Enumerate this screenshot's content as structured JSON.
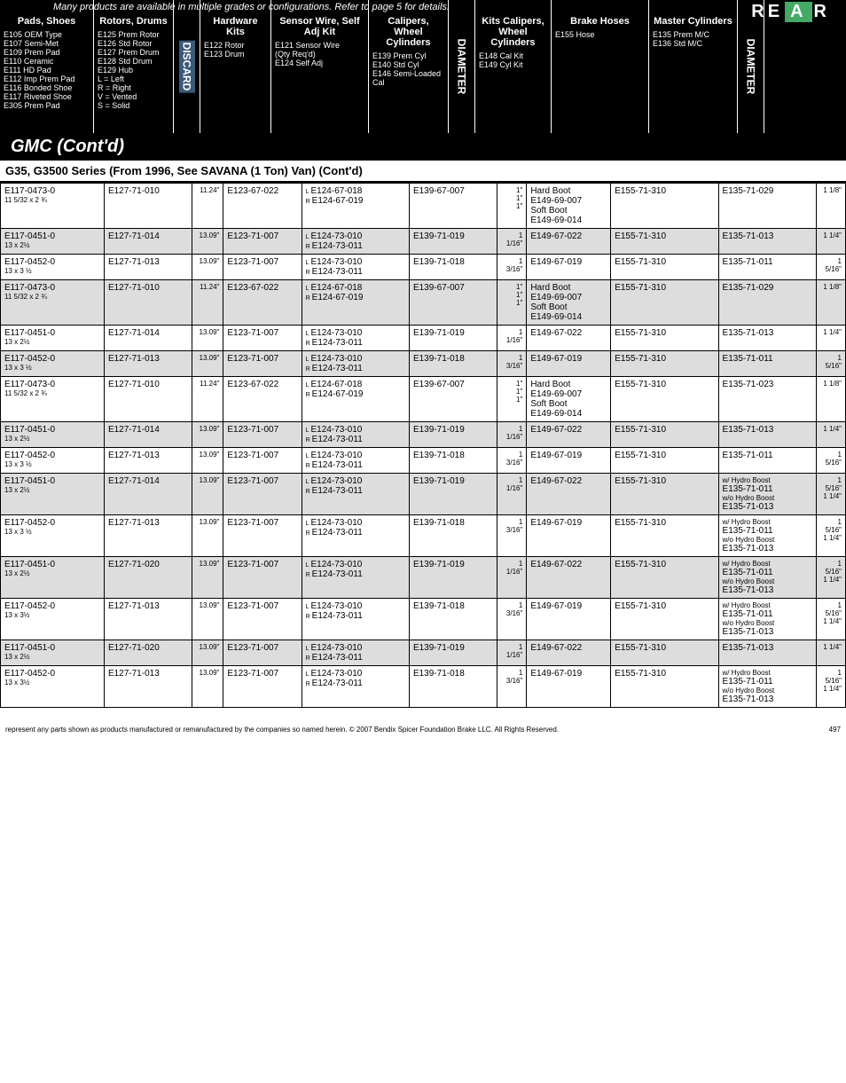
{
  "banner_note": "Many products are available in multiple grades or configurations. Refer to page 5 for details.",
  "rear_letters": [
    "R",
    "E",
    "A",
    "R"
  ],
  "headers": {
    "c1": {
      "title": "Pads, Shoes",
      "lines": [
        "E105 OEM Type",
        "E107 Semi-Met",
        "E109 Prem Pad",
        "E110 Ceramic",
        "E111 HD Pad",
        "E112 Imp Prem Pad",
        "E116 Bonded Shoe",
        "E117 Riveted Shoe",
        "E305 Prem Pad"
      ]
    },
    "c2": {
      "title": "Rotors, Drums",
      "lines": [
        "E125 Prem Rotor",
        "E126 Std Rotor",
        "E127 Prem Drum",
        "E128 Std Drum",
        "E129 Hub",
        "",
        "L = Left",
        "R = Right",
        "V = Vented",
        "S = Solid"
      ]
    },
    "c3": {
      "title": "DISCARD"
    },
    "c4": {
      "title": "Hardware Kits",
      "lines": [
        "",
        "",
        "E122 Rotor",
        "E123 Drum"
      ]
    },
    "c5": {
      "title": "Sensor Wire, Self Adj Kit",
      "lines": [
        "",
        "",
        "E121 Sensor Wire",
        "(Qty Req'd)",
        "E124 Self Adj"
      ]
    },
    "c6": {
      "title": "Calipers, Wheel Cylinders",
      "lines": [
        "",
        "",
        "",
        "E139 Prem Cyl",
        "E140 Std Cyl",
        "E146 Semi-Loaded Cal"
      ]
    },
    "c7": {
      "title": "DIAMETER"
    },
    "c8": {
      "title": "Kits Calipers, Wheel Cylinders",
      "lines": [
        "",
        "",
        "",
        "",
        "E148 Cal Kit",
        "E149 Cyl Kit"
      ]
    },
    "c9": {
      "title": "Brake Hoses",
      "lines": [
        "",
        "",
        "",
        "",
        "E155 Hose"
      ]
    },
    "c10": {
      "title": "Master Cylinders",
      "lines": [
        "",
        "",
        "",
        "E135 Prem M/C",
        "E136 Std M/C"
      ]
    },
    "c11": {
      "title": "DIAMETER"
    }
  },
  "section": "GMC (Cont'd)",
  "subsection": "G35, G3500 Series (From 1996, See SAVANA (1 Ton) Van) (Cont'd)",
  "rows": [
    {
      "shade": false,
      "c1": "E117-0473-0",
      "c1s": "11 5/32 x 2 ¾",
      "c2": "E127-71-010",
      "c3": "11.24\"",
      "c4": "E123-67-022",
      "c5": [
        [
          "L",
          "E124-67-018"
        ],
        [
          "R",
          "E124-67-019"
        ]
      ],
      "c6": "E139-67-007",
      "c7": [
        "1\"",
        "1\"",
        "",
        "1\""
      ],
      "c8": [
        "Hard Boot",
        "E149-69-007",
        "Soft Boot",
        "E149-69-014"
      ],
      "c9": "E155-71-310",
      "c10": "E135-71-029",
      "c11": "1 1/8\""
    },
    {
      "shade": true,
      "c1": "E117-0451-0",
      "c1s": "13 x 2½",
      "c2": "E127-71-014",
      "c3": "13.09\"",
      "c4": "E123-71-007",
      "c5": [
        [
          "L",
          "E124-73-010"
        ],
        [
          "R",
          "E124-73-011"
        ]
      ],
      "c6": "E139-71-019",
      "c7": [
        "1 1/16\""
      ],
      "c8": [
        "E149-67-022"
      ],
      "c9": "E155-71-310",
      "c10": "E135-71-013",
      "c11": "1 1/4\""
    },
    {
      "shade": false,
      "c1": "E117-0452-0",
      "c1s": "13 x 3 ½",
      "c2": "E127-71-013",
      "c3": "13.09\"",
      "c4": "E123-71-007",
      "c5": [
        [
          "L",
          "E124-73-010"
        ],
        [
          "R",
          "E124-73-011"
        ]
      ],
      "c6": "E139-71-018",
      "c7": [
        "1 3/16\""
      ],
      "c8": [
        "E149-67-019"
      ],
      "c9": "E155-71-310",
      "c10": "E135-71-011",
      "c11": "1 5/16\""
    },
    {
      "shade": true,
      "c1": "E117-0473-0",
      "c1s": "11 5/32 x 2 ¾",
      "c2": "E127-71-010",
      "c3": "11.24\"",
      "c4": "E123-67-022",
      "c5": [
        [
          "L",
          "E124-67-018"
        ],
        [
          "R",
          "E124-67-019"
        ]
      ],
      "c6": "E139-67-007",
      "c7": [
        "1\"",
        "1\"",
        "",
        "1\""
      ],
      "c8": [
        "Hard Boot",
        "E149-69-007",
        "Soft Boot",
        "E149-69-014"
      ],
      "c9": "E155-71-310",
      "c10": "E135-71-029",
      "c11": "1 1/8\""
    },
    {
      "shade": false,
      "c1": "E117-0451-0",
      "c1s": "13 x 2½",
      "c2": "E127-71-014",
      "c3": "13.09\"",
      "c4": "E123-71-007",
      "c5": [
        [
          "L",
          "E124-73-010"
        ],
        [
          "R",
          "E124-73-011"
        ]
      ],
      "c6": "E139-71-019",
      "c7": [
        "1 1/16\""
      ],
      "c8": [
        "E149-67-022"
      ],
      "c9": "E155-71-310",
      "c10": "E135-71-013",
      "c11": "1 1/4\""
    },
    {
      "shade": true,
      "c1": "E117-0452-0",
      "c1s": "13 x 3 ½",
      "c2": "E127-71-013",
      "c3": "13.09\"",
      "c4": "E123-71-007",
      "c5": [
        [
          "L",
          "E124-73-010"
        ],
        [
          "R",
          "E124-73-011"
        ]
      ],
      "c6": "E139-71-018",
      "c7": [
        "1 3/16\""
      ],
      "c8": [
        "E149-67-019"
      ],
      "c9": "E155-71-310",
      "c10": "E135-71-011",
      "c11": "1 5/16\""
    },
    {
      "shade": false,
      "c1": "E117-0473-0",
      "c1s": "11 5/32 x 2 ¾",
      "c2": "E127-71-010",
      "c3": "11.24\"",
      "c4": "E123-67-022",
      "c5": [
        [
          "L",
          "E124-67-018"
        ],
        [
          "R",
          "E124-67-019"
        ]
      ],
      "c6": "E139-67-007",
      "c7": [
        "1\"",
        "1\"",
        "",
        "1\""
      ],
      "c8": [
        "Hard Boot",
        "E149-69-007",
        "Soft Boot",
        "E149-69-014"
      ],
      "c9": "E155-71-310",
      "c10": "E135-71-023",
      "c11": "1 1/8\""
    },
    {
      "shade": true,
      "c1": "E117-0451-0",
      "c1s": "13 x 2½",
      "c2": "E127-71-014",
      "c3": "13.09\"",
      "c4": "E123-71-007",
      "c5": [
        [
          "L",
          "E124-73-010"
        ],
        [
          "R",
          "E124-73-011"
        ]
      ],
      "c6": "E139-71-019",
      "c7": [
        "1 1/16\""
      ],
      "c8": [
        "E149-67-022"
      ],
      "c9": "E155-71-310",
      "c10": "E135-71-013",
      "c11": "1 1/4\""
    },
    {
      "shade": false,
      "c1": "E117-0452-0",
      "c1s": "13 x 3 ½",
      "c2": "E127-71-013",
      "c3": "13.09\"",
      "c4": "E123-71-007",
      "c5": [
        [
          "L",
          "E124-73-010"
        ],
        [
          "R",
          "E124-73-011"
        ]
      ],
      "c6": "E139-71-018",
      "c7": [
        "1 3/16\""
      ],
      "c8": [
        "E149-67-019"
      ],
      "c9": "E155-71-310",
      "c10": "E135-71-011",
      "c11": "1 5/16\""
    },
    {
      "shade": true,
      "c1": "E117-0451-0",
      "c1s": "13 x 2½",
      "c2": "E127-71-014",
      "c3": "13.09\"",
      "c4": "E123-71-007",
      "c5": [
        [
          "L",
          "E124-73-010"
        ],
        [
          "R",
          "E124-73-011"
        ]
      ],
      "c6": "E139-71-019",
      "c7": [
        "1 1/16\""
      ],
      "c8": [
        "E149-67-022"
      ],
      "c9": "E155-71-310",
      "c10l": [
        "w/ Hydro Boost",
        "E135-71-011",
        "w/o Hydro Boost",
        "E135-71-013"
      ],
      "c11l": [
        "",
        "1 5/16\"",
        "",
        "1 1/4\""
      ]
    },
    {
      "shade": false,
      "c1": "E117-0452-0",
      "c1s": "13 x 3 ½",
      "c2": "E127-71-013",
      "c3": "13.09\"",
      "c4": "E123-71-007",
      "c5": [
        [
          "L",
          "E124-73-010"
        ],
        [
          "R",
          "E124-73-011"
        ]
      ],
      "c6": "E139-71-018",
      "c7": [
        "1 3/16\""
      ],
      "c8": [
        "E149-67-019"
      ],
      "c9": "E155-71-310",
      "c10l": [
        "w/ Hydro Boost",
        "E135-71-011",
        "w/o Hydro Boost",
        "E135-71-013"
      ],
      "c11l": [
        "",
        "1 5/16\"",
        "",
        "1 1/4\""
      ]
    },
    {
      "shade": true,
      "c1": "E117-0451-0",
      "c1s": "13 x 2½",
      "c2": "E127-71-020",
      "c3": "13.09\"",
      "c4": "E123-71-007",
      "c5": [
        [
          "L",
          "E124-73-010"
        ],
        [
          "R",
          "E124-73-011"
        ]
      ],
      "c6": "E139-71-019",
      "c7": [
        "1 1/16\""
      ],
      "c8": [
        "E149-67-022"
      ],
      "c9": "E155-71-310",
      "c10l": [
        "w/ Hydro Boost",
        "E135-71-011",
        "w/o Hydro Boost",
        "E135-71-013"
      ],
      "c11l": [
        "",
        "1 5/16\"",
        "",
        "1 1/4\""
      ]
    },
    {
      "shade": false,
      "c1": "E117-0452-0",
      "c1s": "13 x 3½",
      "c2": "E127-71-013",
      "c3": "13.09\"",
      "c4": "E123-71-007",
      "c5": [
        [
          "L",
          "E124-73-010"
        ],
        [
          "R",
          "E124-73-011"
        ]
      ],
      "c6": "E139-71-018",
      "c7": [
        "1 3/16\""
      ],
      "c8": [
        "E149-67-019"
      ],
      "c9": "E155-71-310",
      "c10l": [
        "w/ Hydro Boost",
        "E135-71-011",
        "w/o Hydro Boost",
        "E135-71-013"
      ],
      "c11l": [
        "",
        "1 5/16\"",
        "",
        "1 1/4\""
      ]
    },
    {
      "shade": true,
      "c1": "E117-0451-0",
      "c1s": "13 x 2½",
      "c2": "E127-71-020",
      "c3": "13.09\"",
      "c4": "E123-71-007",
      "c5": [
        [
          "L",
          "E124-73-010"
        ],
        [
          "R",
          "E124-73-011"
        ]
      ],
      "c6": "E139-71-019",
      "c7": [
        "1 1/16\""
      ],
      "c8": [
        "E149-67-022"
      ],
      "c9": "E155-71-310",
      "c10": "E135-71-013",
      "c11": "1 1/4\""
    },
    {
      "shade": false,
      "c1": "E117-0452-0",
      "c1s": "13 x 3½",
      "c2": "E127-71-013",
      "c3": "13.09\"",
      "c4": "E123-71-007",
      "c5": [
        [
          "L",
          "E124-73-010"
        ],
        [
          "R",
          "E124-73-011"
        ]
      ],
      "c6": "E139-71-018",
      "c7": [
        "1 3/16\""
      ],
      "c8": [
        "E149-67-019"
      ],
      "c9": "E155-71-310",
      "c10l": [
        "w/ Hydro Boost",
        "E135-71-011",
        "w/o Hydro Boost",
        "E135-71-013"
      ],
      "c11l": [
        "",
        "1 5/16\"",
        "",
        "1 1/4\""
      ]
    }
  ],
  "footer_text": "represent any parts shown as products manufactured or remanufactured by the companies so named herein. © 2007 Bendix Spicer Foundation Brake LLC. All Rights Reserved.",
  "page_num": "497"
}
